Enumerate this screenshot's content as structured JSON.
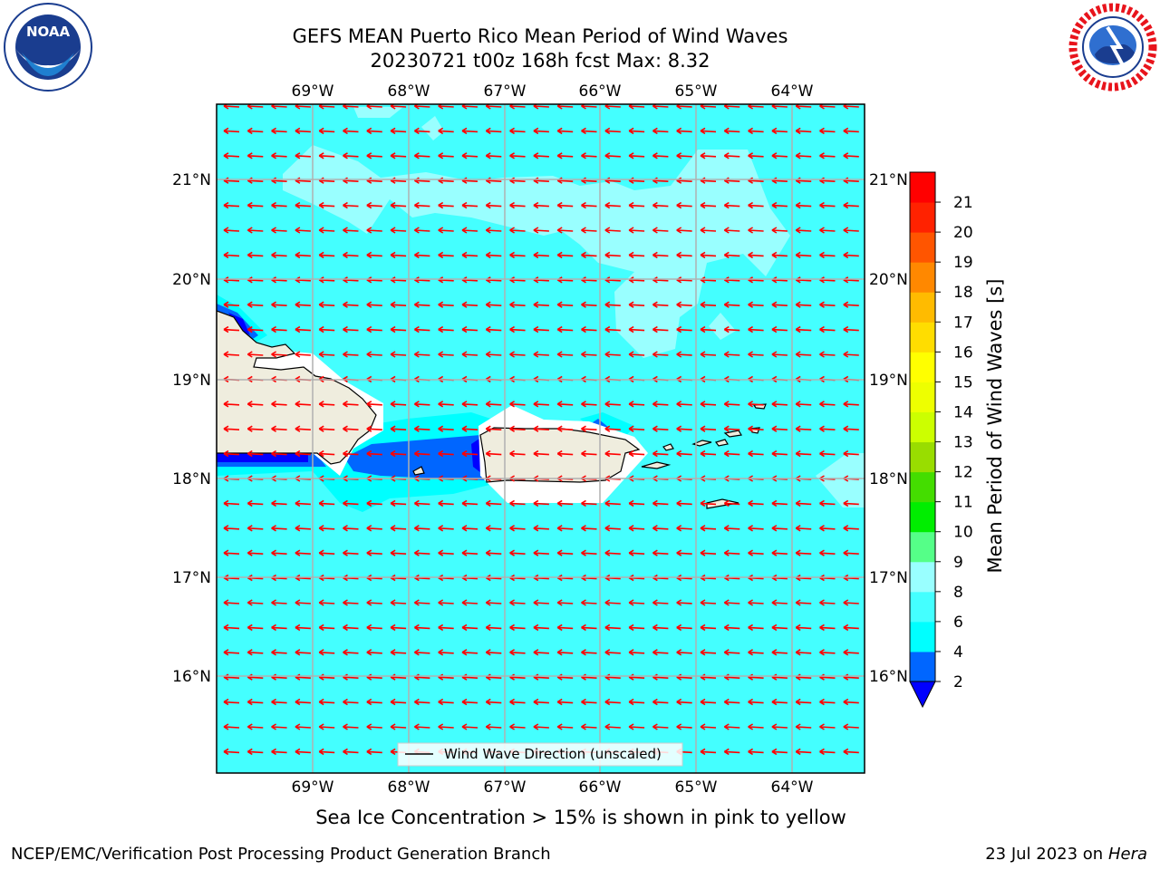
{
  "title_line1": "GEFS MEAN Puerto Rico Mean Period of Wind Waves",
  "title_line2": "20230721 t00z 168h fcst   Max: 8.32",
  "ice_note": "Sea Ice Concentration > 15% is shown in pink to yellow",
  "footer_left": "NCEP/EMC/Verification Post Processing Product Generation Branch",
  "footer_date": "23 Jul 2023 on ",
  "footer_machine": "Hera",
  "logos": {
    "left": "noaa-logo",
    "left_text": "NOAA",
    "right": "nws-logo",
    "right_text": "NATIONAL WEATHER SERVICE"
  },
  "map": {
    "lon_ticks": [
      "69°W",
      "68°W",
      "67°W",
      "66°W",
      "65°W",
      "64°W"
    ],
    "lat_ticks": [
      "21°N",
      "20°N",
      "19°N",
      "18°N",
      "17°N",
      "16°N"
    ],
    "ocean_color": "#44ffff",
    "calm_color": "#99ffff",
    "land_color": "#efedde",
    "arrow_color": "#ff0000",
    "arrow_direction": "westward",
    "legend_label": "Wind Wave Direction (unscaled)"
  },
  "colorbar": {
    "label": "Mean Period of Wind Waves [s]",
    "tick_labels": [
      "2",
      "4",
      "6",
      "8",
      "9",
      "10",
      "11",
      "12",
      "13",
      "14",
      "15",
      "16",
      "17",
      "18",
      "19",
      "20",
      "21"
    ],
    "colors": [
      "#0066ff",
      "#00ffff",
      "#44ffff",
      "#99ffff",
      "#55ff88",
      "#00ee00",
      "#44dd00",
      "#99dd00",
      "#ccff00",
      "#eeff00",
      "#ffff00",
      "#ffdd00",
      "#ffbb00",
      "#ff8800",
      "#ff5500",
      "#ff2200",
      "#ff0000"
    ],
    "under_color": "#0000ff"
  }
}
